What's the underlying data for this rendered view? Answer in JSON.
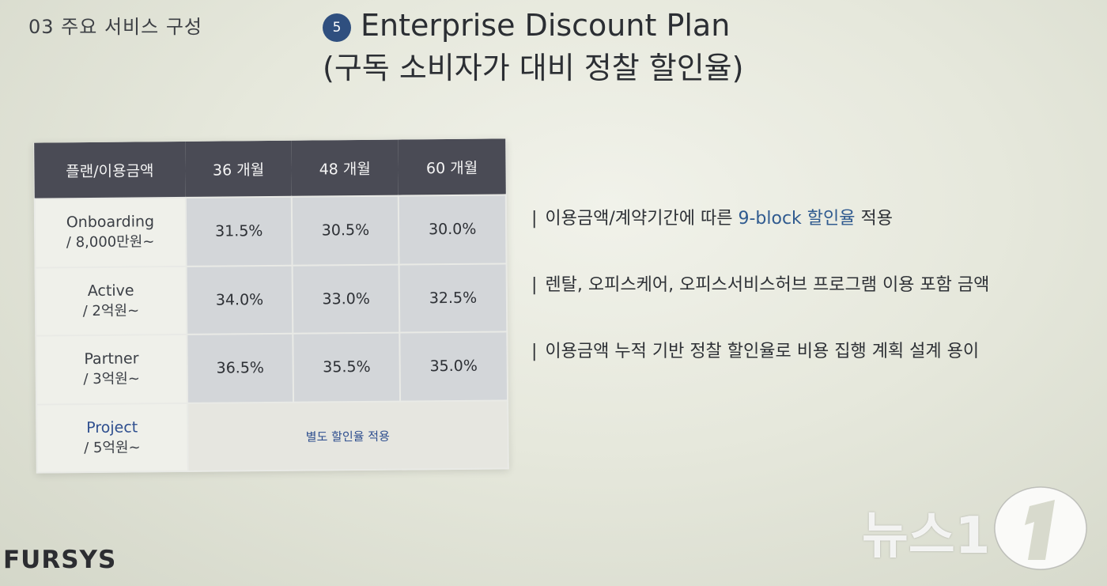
{
  "section_label": "03  주요 서비스 구성",
  "title": {
    "badge": "5",
    "line1": "Enterprise Discount Plan",
    "line2": "(구독 소비자가 대비 정찰 할인율)"
  },
  "table": {
    "headers": [
      "플랜/이용금액",
      "36 개월",
      "48 개월",
      "60 개월"
    ],
    "rows": [
      {
        "name": "Onboarding",
        "amount": "/ 8,000만원~",
        "values": [
          "31.5%",
          "30.5%",
          "30.0%"
        ]
      },
      {
        "name": "Active",
        "amount": "/ 2억원~",
        "values": [
          "34.0%",
          "33.0%",
          "32.5%"
        ]
      },
      {
        "name": "Partner",
        "amount": "/ 3억원~",
        "values": [
          "36.5%",
          "35.5%",
          "35.0%"
        ]
      }
    ],
    "project": {
      "name": "Project",
      "amount": "/ 5억원~",
      "note": "별도 할인율 적용"
    }
  },
  "notes": [
    {
      "bar": "|",
      "before": "이용금액/계약기간에 따른 ",
      "highlight": "9-block 할인율",
      "after": " 적용"
    },
    {
      "bar": "|",
      "before": "렌탈, 오피스케어, 오피스서비스허브 프로그램 이용 포함 금액",
      "highlight": "",
      "after": ""
    },
    {
      "bar": "|",
      "before": "이용금액 누적 기반 정찰 할인율로 비용 집행 계획 설계 용이",
      "highlight": "",
      "after": ""
    }
  ],
  "brand": "FURSYS",
  "watermark": "뉴스1",
  "colors": {
    "header_bg": "#4a4b55",
    "value_cell_bg": "#d3d6d9",
    "highlight_blue": "#2f5a8f",
    "badge_bg": "#2f4f7f"
  }
}
